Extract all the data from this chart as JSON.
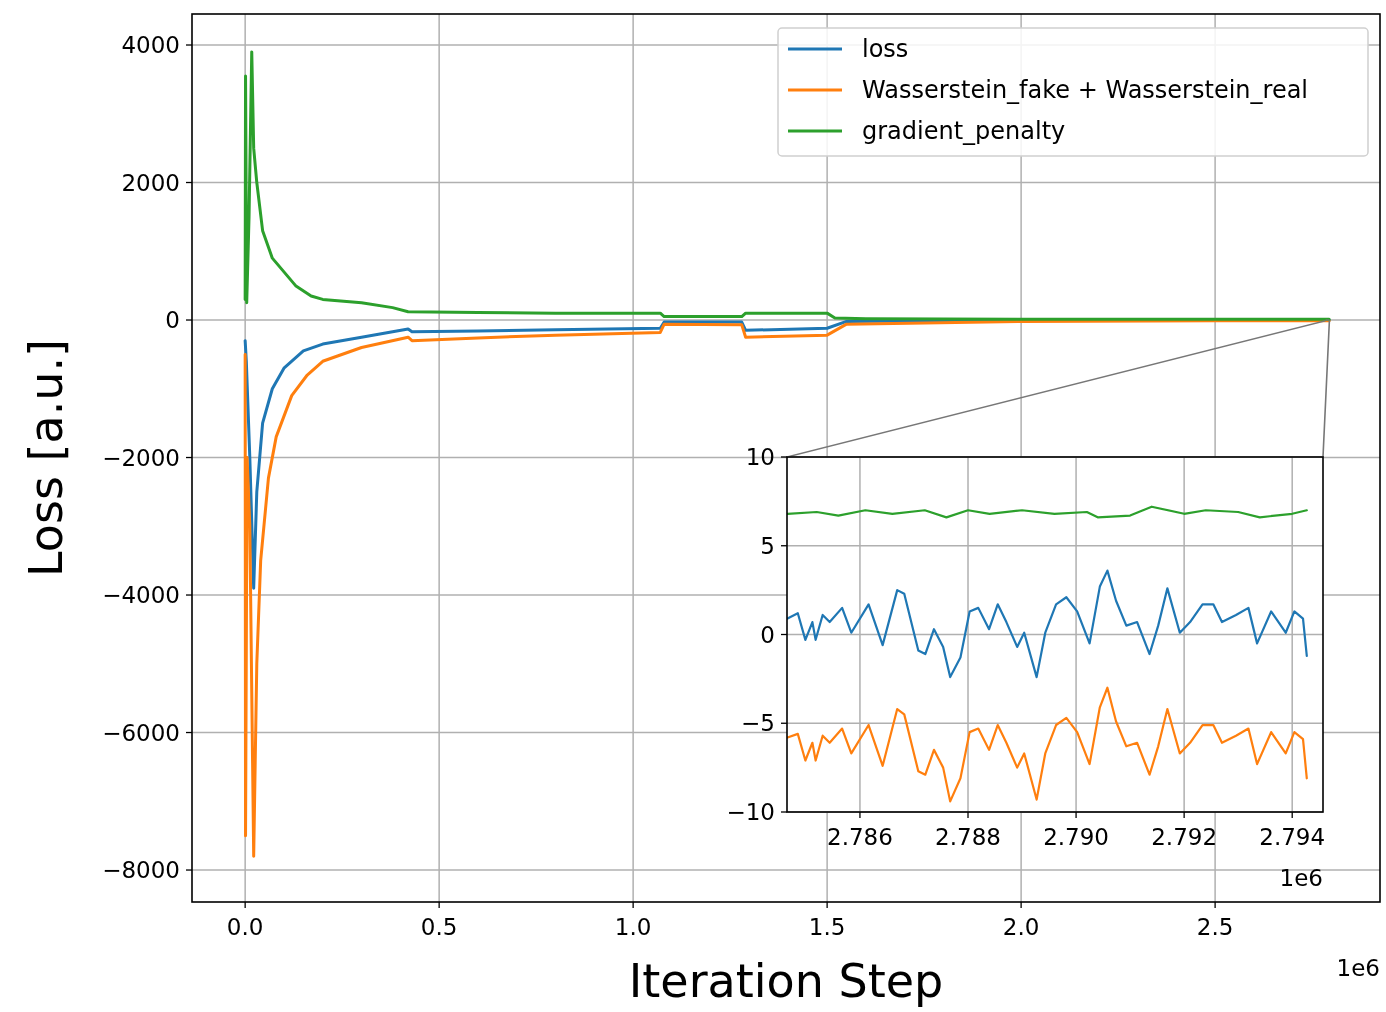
{
  "chart_data": [
    {
      "type": "line",
      "xlabel": "Iteration Step",
      "ylabel": "Loss [a.u.]",
      "xlim": [
        -0.137,
        2.925
      ],
      "ylim": [
        -8465,
        4451
      ],
      "xticks": [
        {
          "value": 0,
          "label": "0.0"
        },
        0.5,
        {
          "value": 1,
          "label": "1.0"
        },
        1.5,
        {
          "value": 2,
          "label": "2.0"
        },
        2.5
      ],
      "yticks": [
        {
          "value": -8000,
          "label": "−8000"
        },
        {
          "value": -6000,
          "label": "−6000"
        },
        {
          "value": -4000,
          "label": "−4000"
        },
        {
          "value": -2000,
          "label": "−2000"
        },
        0,
        2000,
        4000
      ],
      "grid": true,
      "legend": "top right",
      "annotations": [
        "1e6"
      ],
      "series": [
        {
          "name": "loss",
          "color": "#1f77b4",
          "x": [
            0,
            0.003,
            0.012,
            0.022,
            0.03,
            0.045,
            0.07,
            0.1,
            0.15,
            0.2,
            0.3,
            0.42,
            0.43,
            0.6,
            0.8,
            1.07,
            1.08,
            1.28,
            1.29,
            1.5,
            1.55,
            2.0,
            2.794
          ],
          "values": [
            -300,
            -600,
            -2000,
            -3900,
            -2500,
            -1500,
            -1000,
            -700,
            -450,
            -350,
            -250,
            -130,
            -170,
            -160,
            -140,
            -120,
            -30,
            -30,
            -150,
            -120,
            -20,
            0,
            0
          ]
        },
        {
          "name": "Wasserstein_fake + Wasserstein_real",
          "color": "#ff7f0e",
          "x": [
            0,
            0.001,
            0.005,
            0.012,
            0.022,
            0.03,
            0.04,
            0.06,
            0.08,
            0.12,
            0.16,
            0.2,
            0.3,
            0.42,
            0.43,
            0.6,
            0.8,
            1.07,
            1.08,
            1.28,
            1.29,
            1.5,
            1.55,
            2.0,
            2.5,
            2.794
          ],
          "values": [
            -500,
            -7500,
            -2000,
            -3000,
            -7800,
            -5000,
            -3500,
            -2300,
            -1700,
            -1100,
            -800,
            -600,
            -400,
            -250,
            -300,
            -260,
            -220,
            -180,
            -60,
            -70,
            -250,
            -220,
            -60,
            -20,
            -10,
            -10
          ]
        },
        {
          "name": "gradient_penalty",
          "color": "#2ca02c",
          "x": [
            0,
            0.001,
            0.004,
            0.01,
            0.017,
            0.022,
            0.03,
            0.045,
            0.07,
            0.1,
            0.13,
            0.17,
            0.2,
            0.3,
            0.38,
            0.42,
            0.6,
            0.8,
            1.07,
            1.08,
            1.28,
            1.29,
            1.5,
            1.52,
            1.6,
            2.0,
            2.5,
            2.794
          ],
          "values": [
            300,
            3550,
            250,
            1500,
            3900,
            2500,
            2000,
            1300,
            900,
            700,
            500,
            350,
            300,
            250,
            180,
            120,
            110,
            100,
            100,
            50,
            50,
            100,
            100,
            30,
            20,
            10,
            10,
            10
          ]
        }
      ]
    },
    {
      "type": "line",
      "xlim": [
        2.78465,
        2.79457
      ],
      "ylim": [
        -10,
        10
      ],
      "xticks": [
        2.786,
        2.788,
        {
          "value": 2.79,
          "label": "2.790"
        },
        2.792,
        2.794
      ],
      "yticks": [
        {
          "value": -10,
          "label": "−10"
        },
        {
          "value": -5,
          "label": "−5"
        },
        0,
        5,
        10
      ],
      "grid": true,
      "annotations": [
        "1e6"
      ],
      "series": [
        {
          "color": "#1f77b4",
          "x": [
            2.78466,
            2.78485,
            2.78499,
            2.78512,
            2.78518,
            2.78531,
            2.78544,
            2.78567,
            2.78584,
            2.78616,
            2.78642,
            2.78669,
            2.78682,
            2.78708,
            2.78721,
            2.78737,
            2.78754,
            2.78767,
            2.78786,
            2.78803,
            2.78819,
            2.78839,
            2.78855,
            2.78871,
            2.78891,
            2.78904,
            2.78927,
            2.78943,
            2.78963,
            2.78982,
            2.79002,
            2.79025,
            2.79044,
            2.79058,
            2.79074,
            2.79093,
            2.79113,
            2.79136,
            2.79152,
            2.79169,
            2.79192,
            2.79211,
            2.79234,
            2.79254,
            2.7927,
            2.79296,
            2.79319,
            2.79335,
            2.79361,
            2.79388,
            2.79404,
            2.7942,
            2.79427
          ],
          "values": [
            0.9,
            1.2,
            -0.3,
            0.7,
            -0.3,
            1.1,
            0.7,
            1.5,
            0.1,
            1.7,
            -0.6,
            2.5,
            2.3,
            -0.9,
            -1.1,
            0.3,
            -0.7,
            -2.4,
            -1.3,
            1.3,
            1.5,
            0.3,
            1.7,
            0.7,
            -0.7,
            0.1,
            -2.4,
            0.1,
            1.7,
            2.1,
            1.3,
            -0.5,
            2.7,
            3.6,
            1.9,
            0.5,
            0.7,
            -1.1,
            0.5,
            2.6,
            0.1,
            0.7,
            1.7,
            1.7,
            0.7,
            1.1,
            1.5,
            -0.5,
            1.3,
            0.1,
            1.3,
            0.9,
            -1.2
          ]
        },
        {
          "color": "#ff7f0e",
          "x": [
            2.78466,
            2.78485,
            2.78499,
            2.78512,
            2.78518,
            2.78531,
            2.78544,
            2.78567,
            2.78584,
            2.78616,
            2.78642,
            2.78669,
            2.78682,
            2.78708,
            2.78721,
            2.78737,
            2.78754,
            2.78767,
            2.78786,
            2.78803,
            2.78819,
            2.78839,
            2.78855,
            2.78871,
            2.78891,
            2.78904,
            2.78927,
            2.78943,
            2.78963,
            2.78982,
            2.79002,
            2.79025,
            2.79044,
            2.79058,
            2.79074,
            2.79093,
            2.79113,
            2.79136,
            2.79152,
            2.79169,
            2.79192,
            2.79211,
            2.79234,
            2.79254,
            2.7927,
            2.79296,
            2.79319,
            2.79335,
            2.79361,
            2.79388,
            2.79404,
            2.7942,
            2.79427
          ],
          "values": [
            -5.8,
            -5.6,
            -7.1,
            -6.1,
            -7.1,
            -5.7,
            -6.1,
            -5.3,
            -6.7,
            -5.1,
            -7.4,
            -4.2,
            -4.5,
            -7.7,
            -7.9,
            -6.5,
            -7.5,
            -9.4,
            -8.1,
            -5.5,
            -5.3,
            -6.5,
            -5.1,
            -6.1,
            -7.5,
            -6.7,
            -9.3,
            -6.7,
            -5.1,
            -4.7,
            -5.5,
            -7.3,
            -4.1,
            -3.0,
            -4.9,
            -6.3,
            -6.1,
            -7.9,
            -6.3,
            -4.2,
            -6.7,
            -6.1,
            -5.1,
            -5.1,
            -6.1,
            -5.7,
            -5.3,
            -7.3,
            -5.5,
            -6.7,
            -5.5,
            -5.9,
            -8.1
          ]
        },
        {
          "color": "#2ca02c",
          "x": [
            2.78466,
            2.7852,
            2.7856,
            2.7861,
            2.7866,
            2.7872,
            2.7876,
            2.788,
            2.7884,
            2.789,
            2.7896,
            2.7902,
            2.7904,
            2.791,
            2.7914,
            2.792,
            2.7924,
            2.793,
            2.7934,
            2.794,
            2.79427
          ],
          "values": [
            6.8,
            6.9,
            6.7,
            7.0,
            6.8,
            7.0,
            6.6,
            7.0,
            6.8,
            7.0,
            6.8,
            6.9,
            6.6,
            6.7,
            7.2,
            6.8,
            7.0,
            6.9,
            6.6,
            6.8,
            7.0
          ]
        }
      ]
    }
  ]
}
